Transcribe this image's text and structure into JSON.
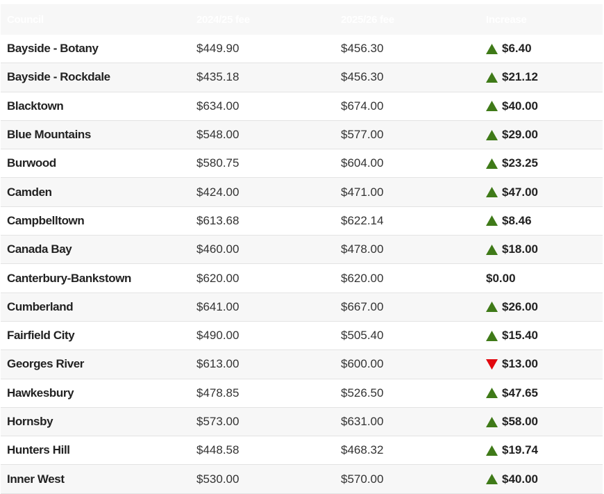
{
  "table": {
    "headers": [
      "Council",
      "2024/25 fee",
      "2025/26 fee",
      "Increase"
    ],
    "rows": [
      {
        "council": "Bayside - Botany",
        "fee_2024": "$449.90",
        "fee_2025": "$456.30",
        "increase": "$6.40",
        "direction": "up"
      },
      {
        "council": "Bayside - Rockdale",
        "fee_2024": "$435.18",
        "fee_2025": "$456.30",
        "increase": "$21.12",
        "direction": "up"
      },
      {
        "council": "Blacktown",
        "fee_2024": "$634.00",
        "fee_2025": "$674.00",
        "increase": "$40.00",
        "direction": "up"
      },
      {
        "council": "Blue Mountains",
        "fee_2024": "$548.00",
        "fee_2025": "$577.00",
        "increase": "$29.00",
        "direction": "up"
      },
      {
        "council": "Burwood",
        "fee_2024": "$580.75",
        "fee_2025": "$604.00",
        "increase": "$23.25",
        "direction": "up"
      },
      {
        "council": "Camden",
        "fee_2024": "$424.00",
        "fee_2025": "$471.00",
        "increase": "$47.00",
        "direction": "up"
      },
      {
        "council": "Campbelltown",
        "fee_2024": "$613.68",
        "fee_2025": "$622.14",
        "increase": "$8.46",
        "direction": "up"
      },
      {
        "council": "Canada Bay",
        "fee_2024": "$460.00",
        "fee_2025": "$478.00",
        "increase": "$18.00",
        "direction": "up"
      },
      {
        "council": "Canterbury-Bankstown",
        "fee_2024": "$620.00",
        "fee_2025": "$620.00",
        "increase": "$0.00",
        "direction": null
      },
      {
        "council": "Cumberland",
        "fee_2024": "$641.00",
        "fee_2025": "$667.00",
        "increase": "$26.00",
        "direction": "up"
      },
      {
        "council": "Fairfield City",
        "fee_2024": "$490.00",
        "fee_2025": "$505.40",
        "increase": "$15.40",
        "direction": "up"
      },
      {
        "council": "Georges River",
        "fee_2024": "$613.00",
        "fee_2025": "$600.00",
        "increase": "$13.00",
        "direction": "down"
      },
      {
        "council": "Hawkesbury",
        "fee_2024": "$478.85",
        "fee_2025": "$526.50",
        "increase": "$47.65",
        "direction": "up"
      },
      {
        "council": "Hornsby",
        "fee_2024": "$573.00",
        "fee_2025": "$631.00",
        "increase": "$58.00",
        "direction": "up"
      },
      {
        "council": "Hunters Hill",
        "fee_2024": "$448.58",
        "fee_2025": "$468.32",
        "increase": "$19.74",
        "direction": "up"
      },
      {
        "council": "Inner West",
        "fee_2024": "$530.00",
        "fee_2025": "$570.00",
        "increase": "$40.00",
        "direction": "up"
      }
    ]
  }
}
